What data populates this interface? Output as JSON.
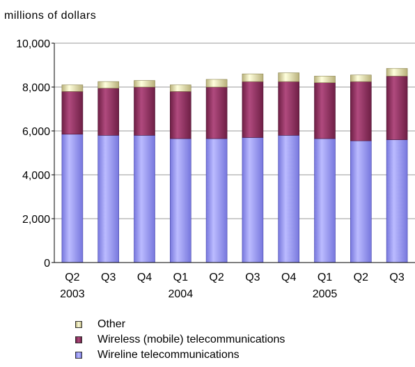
{
  "chart_data": {
    "type": "bar",
    "stacked": true,
    "ylabel": "millions  of  dollars",
    "ylim": [
      0,
      10000
    ],
    "yticks": [
      0,
      2000,
      4000,
      6000,
      8000,
      10000
    ],
    "ytick_labels": [
      "0",
      "2,000",
      "4,000",
      "6,000",
      "8,000",
      "10,000"
    ],
    "grid": true,
    "legend_position": "bottom",
    "categories": [
      {
        "quarter": "Q2",
        "year": "2003"
      },
      {
        "quarter": "Q3",
        "year": ""
      },
      {
        "quarter": "Q4",
        "year": ""
      },
      {
        "quarter": "Q1",
        "year": "2004"
      },
      {
        "quarter": "Q2",
        "year": ""
      },
      {
        "quarter": "Q3",
        "year": ""
      },
      {
        "quarter": "Q4",
        "year": ""
      },
      {
        "quarter": "Q1",
        "year": "2005"
      },
      {
        "quarter": "Q2",
        "year": ""
      },
      {
        "quarter": "Q3",
        "year": ""
      }
    ],
    "series": [
      {
        "name": "Wireline telecommunications",
        "color": "#9999ff",
        "values": [
          5850,
          5800,
          5800,
          5650,
          5650,
          5700,
          5800,
          5650,
          5550,
          5600
        ]
      },
      {
        "name": "Wireless (mobile) telecommunications",
        "color": "#993366",
        "values": [
          1950,
          2150,
          2200,
          2150,
          2350,
          2550,
          2450,
          2550,
          2700,
          2900
        ]
      },
      {
        "name": "Other",
        "color": "#ffffcc",
        "values": [
          300,
          300,
          300,
          300,
          350,
          350,
          400,
          300,
          300,
          350
        ]
      }
    ]
  },
  "legend": {
    "items": [
      {
        "label": "Other",
        "color": "#ffffcc"
      },
      {
        "label": "Wireless (mobile) telecommunications",
        "color": "#993366"
      },
      {
        "label": "Wireline telecommunications",
        "color": "#9999ff"
      }
    ]
  }
}
